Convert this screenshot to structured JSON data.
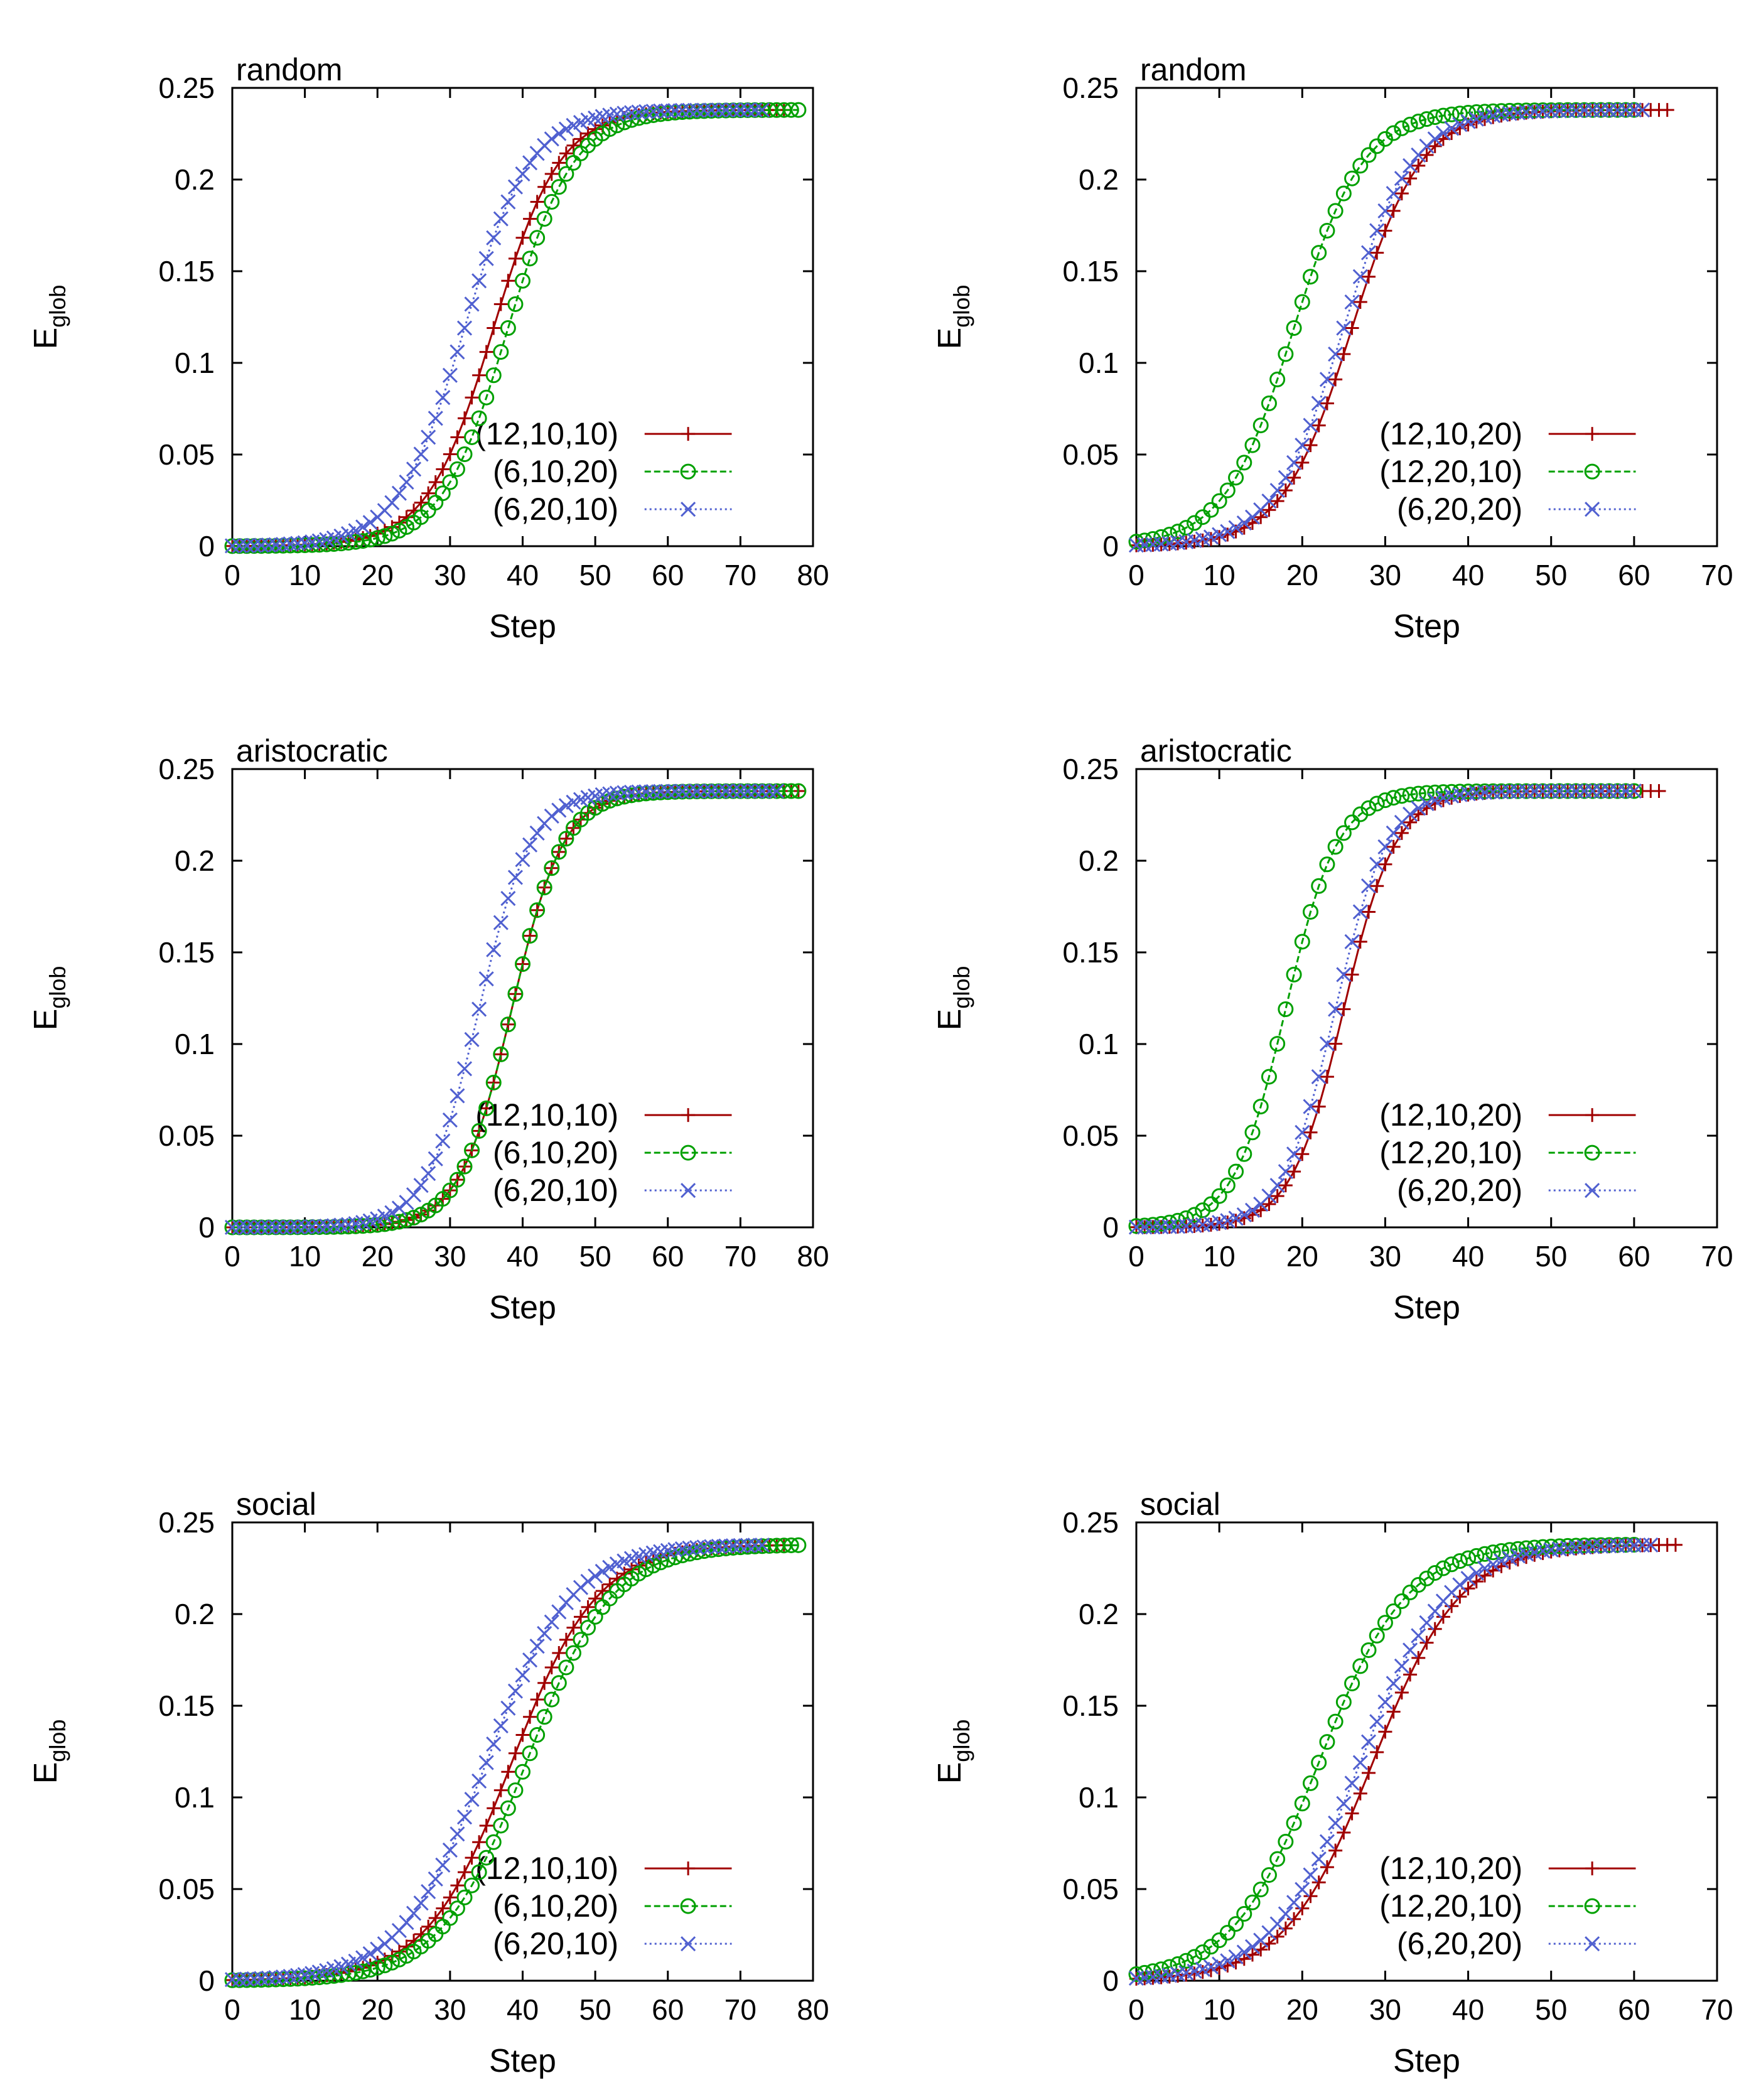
{
  "figure": {
    "colors": {
      "red": "#a00000",
      "green": "#00a000",
      "blue": "#5060d0"
    }
  },
  "chart_data": [
    {
      "type": "line",
      "title": "random",
      "xlabel": "Step",
      "ylabel_main": "E",
      "ylabel_sub": "glob",
      "xlim": [
        0,
        80
      ],
      "ylim": [
        0,
        0.25
      ],
      "xticks": [
        "0",
        "10",
        "20",
        "30",
        "40",
        "50",
        "60",
        "70",
        "80"
      ],
      "yticks": [
        "0",
        "0.05",
        "0.1",
        "0.15",
        "0.2",
        "0.25"
      ],
      "plateau": 0.238,
      "series": [
        {
          "name": "(12,10,10)",
          "color": "#a00000",
          "marker": "plus",
          "dash": "",
          "midpoint": 36,
          "steepness": 0.22,
          "steps": 76
        },
        {
          "name": "(6,10,20)",
          "color": "#00a000",
          "marker": "circle",
          "dash": "10,5",
          "midpoint": 38,
          "steepness": 0.22,
          "steps": 78
        },
        {
          "name": "(6,20,10)",
          "color": "#5060d0",
          "marker": "cross",
          "dash": "3,5",
          "midpoint": 32,
          "steepness": 0.22,
          "steps": 73
        }
      ]
    },
    {
      "type": "line",
      "title": "random",
      "xlabel": "Step",
      "ylabel_main": "E",
      "ylabel_sub": "glob",
      "xlim": [
        0,
        70
      ],
      "ylim": [
        0,
        0.25
      ],
      "xticks": [
        "0",
        "10",
        "20",
        "30",
        "40",
        "50",
        "60",
        "70"
      ],
      "yticks": [
        "0",
        "0.05",
        "0.1",
        "0.15",
        "0.2",
        "0.25"
      ],
      "plateau": 0.238,
      "series": [
        {
          "name": "(12,10,20)",
          "color": "#a00000",
          "marker": "plus",
          "dash": "",
          "midpoint": 26,
          "steepness": 0.24,
          "steps": 64
        },
        {
          "name": "(12,20,10)",
          "color": "#00a000",
          "marker": "circle",
          "dash": "10,5",
          "midpoint": 19,
          "steepness": 0.24,
          "steps": 60
        },
        {
          "name": "(6,20,20)",
          "color": "#5060d0",
          "marker": "cross",
          "dash": "3,5",
          "midpoint": 25,
          "steepness": 0.24,
          "steps": 61
        }
      ]
    },
    {
      "type": "line",
      "title": "aristocratic",
      "xlabel": "Step",
      "ylabel_main": "E",
      "ylabel_sub": "glob",
      "xlim": [
        0,
        80
      ],
      "ylim": [
        0,
        0.25
      ],
      "xticks": [
        "0",
        "10",
        "20",
        "30",
        "40",
        "50",
        "60",
        "70",
        "80"
      ],
      "yticks": [
        "0",
        "0.05",
        "0.1",
        "0.15",
        "0.2",
        "0.25"
      ],
      "plateau": 0.238,
      "series": [
        {
          "name": "(12,10,10)",
          "color": "#a00000",
          "marker": "plus",
          "dash": "",
          "midpoint": 38.5,
          "steepness": 0.28,
          "steps": 78
        },
        {
          "name": "(6,10,20)",
          "color": "#00a000",
          "marker": "circle",
          "dash": "10,5",
          "midpoint": 38.5,
          "steepness": 0.28,
          "steps": 78
        },
        {
          "name": "(6,20,10)",
          "color": "#5060d0",
          "marker": "cross",
          "dash": "3,5",
          "midpoint": 34,
          "steepness": 0.28,
          "steps": 75
        }
      ]
    },
    {
      "type": "line",
      "title": "aristocratic",
      "xlabel": "Step",
      "ylabel_main": "E",
      "ylabel_sub": "glob",
      "xlim": [
        0,
        70
      ],
      "ylim": [
        0,
        0.25
      ],
      "xticks": [
        "0",
        "10",
        "20",
        "30",
        "40",
        "50",
        "60",
        "70"
      ],
      "yticks": [
        "0",
        "0.05",
        "0.1",
        "0.15",
        "0.2",
        "0.25"
      ],
      "plateau": 0.238,
      "series": [
        {
          "name": "(12,10,20)",
          "color": "#a00000",
          "marker": "plus",
          "dash": "",
          "midpoint": 25,
          "steepness": 0.32,
          "steps": 63
        },
        {
          "name": "(12,20,10)",
          "color": "#00a000",
          "marker": "circle",
          "dash": "10,5",
          "midpoint": 18,
          "steepness": 0.32,
          "steps": 60
        },
        {
          "name": "(6,20,20)",
          "color": "#5060d0",
          "marker": "cross",
          "dash": "3,5",
          "midpoint": 24,
          "steepness": 0.32,
          "steps": 60
        }
      ]
    },
    {
      "type": "line",
      "title": "social",
      "xlabel": "Step",
      "ylabel_main": "E",
      "ylabel_sub": "glob",
      "xlim": [
        0,
        80
      ],
      "ylim": [
        0,
        0.25
      ],
      "xticks": [
        "0",
        "10",
        "20",
        "30",
        "40",
        "50",
        "60",
        "70",
        "80"
      ],
      "yticks": [
        "0",
        "0.05",
        "0.1",
        "0.15",
        "0.2",
        "0.25"
      ],
      "plateau": 0.238,
      "series": [
        {
          "name": "(12,10,10)",
          "color": "#a00000",
          "marker": "plus",
          "dash": "",
          "midpoint": 38.5,
          "steepness": 0.17,
          "steps": 76
        },
        {
          "name": "(6,10,20)",
          "color": "#00a000",
          "marker": "circle",
          "dash": "10,5",
          "midpoint": 40.5,
          "steepness": 0.17,
          "steps": 78
        },
        {
          "name": "(6,20,10)",
          "color": "#5060d0",
          "marker": "cross",
          "dash": "3,5",
          "midpoint": 35,
          "steepness": 0.17,
          "steps": 73
        }
      ]
    },
    {
      "type": "line",
      "title": "social",
      "xlabel": "Step",
      "ylabel_main": "E",
      "ylabel_sub": "glob",
      "xlim": [
        0,
        70
      ],
      "ylim": [
        0,
        0.25
      ],
      "xticks": [
        "0",
        "10",
        "20",
        "30",
        "40",
        "50",
        "60",
        "70"
      ],
      "yticks": [
        "0",
        "0.05",
        "0.1",
        "0.15",
        "0.2",
        "0.25"
      ],
      "plateau": 0.238,
      "series": [
        {
          "name": "(12,10,20)",
          "color": "#a00000",
          "marker": "plus",
          "dash": "",
          "midpoint": 28.5,
          "steepness": 0.19,
          "steps": 65
        },
        {
          "name": "(12,20,10)",
          "color": "#00a000",
          "marker": "circle",
          "dash": "10,5",
          "midpoint": 22,
          "steepness": 0.19,
          "steps": 60
        },
        {
          "name": "(6,20,20)",
          "color": "#5060d0",
          "marker": "cross",
          "dash": "3,5",
          "midpoint": 27,
          "steepness": 0.19,
          "steps": 62
        }
      ]
    }
  ]
}
